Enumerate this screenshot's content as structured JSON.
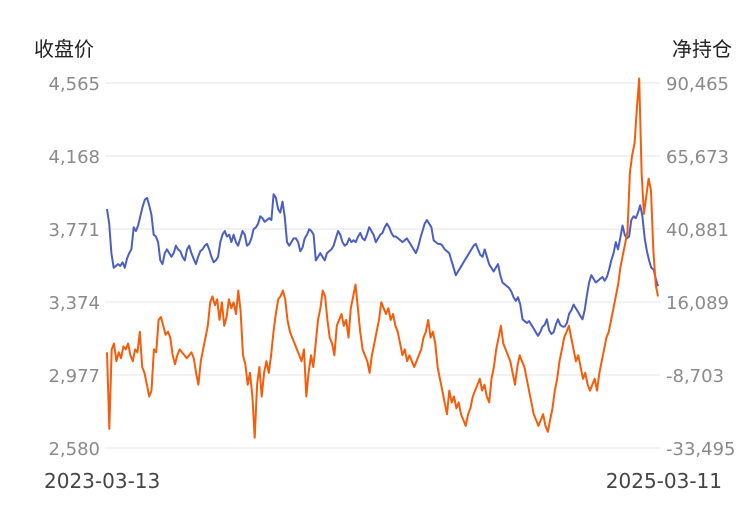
{
  "chart_data": {
    "type": "line",
    "title": "",
    "left_axis_title": "收盘价",
    "right_axis_title": "净持仓",
    "x_start_label": "2023-03-13",
    "x_end_label": "2025-03-11",
    "left_ticks": [
      "4,565",
      "4,168",
      "3,771",
      "3,374",
      "2,977",
      "2,580"
    ],
    "right_ticks": [
      "90,465",
      "65,673",
      "40,881",
      "16,089",
      "-8,703",
      "-33,495"
    ],
    "ylim_left": [
      2580,
      4565
    ],
    "ylim_right": [
      -33495,
      90465
    ],
    "grid": true,
    "colors": {
      "close": "#4a5fc1",
      "net_position": "#f55d0c"
    },
    "series": [
      {
        "axis": "left",
        "color": "#4a5fc1",
        "values": [
          3880,
          3800,
          3640,
          3560,
          3570,
          3580,
          3570,
          3590,
          3560,
          3610,
          3640,
          3660,
          3780,
          3760,
          3790,
          3840,
          3890,
          3930,
          3940,
          3900,
          3850,
          3740,
          3730,
          3700,
          3600,
          3580,
          3640,
          3660,
          3640,
          3620,
          3640,
          3680,
          3660,
          3650,
          3620,
          3600,
          3660,
          3680,
          3640,
          3610,
          3580,
          3620,
          3650,
          3660,
          3680,
          3690,
          3660,
          3620,
          3590,
          3600,
          3620,
          3700,
          3740,
          3760,
          3730,
          3740,
          3700,
          3740,
          3700,
          3680,
          3720,
          3760,
          3740,
          3680,
          3690,
          3720,
          3770,
          3780,
          3800,
          3840,
          3830,
          3810,
          3820,
          3830,
          3820,
          3960,
          3940,
          3880,
          3860,
          3920,
          3840,
          3700,
          3680,
          3700,
          3720,
          3720,
          3700,
          3650,
          3670,
          3720,
          3740,
          3770,
          3760,
          3740,
          3600,
          3620,
          3640,
          3620,
          3600,
          3640,
          3650,
          3660,
          3680,
          3720,
          3760,
          3740,
          3700,
          3680,
          3690,
          3720,
          3700,
          3710,
          3700,
          3730,
          3750,
          3720,
          3710,
          3740,
          3780,
          3760,
          3740,
          3700,
          3720,
          3740,
          3750,
          3780,
          3800,
          3780,
          3750,
          3730,
          3730,
          3720,
          3710,
          3700,
          3710,
          3720,
          3700,
          3680,
          3660,
          3640,
          3670,
          3720,
          3760,
          3800,
          3820,
          3800,
          3780,
          3710,
          3700,
          3690,
          3690,
          3680,
          3660,
          3650,
          3640,
          3600,
          3560,
          3520,
          3540,
          3560,
          3580,
          3600,
          3620,
          3640,
          3660,
          3680,
          3690,
          3660,
          3630,
          3620,
          3660,
          3620,
          3580,
          3560,
          3540,
          3560,
          3580,
          3520,
          3480,
          3470,
          3460,
          3450,
          3430,
          3400,
          3380,
          3400,
          3360,
          3280,
          3270,
          3260,
          3270,
          3250,
          3230,
          3210,
          3190,
          3210,
          3240,
          3250,
          3280,
          3220,
          3200,
          3210,
          3250,
          3280,
          3250,
          3240,
          3240,
          3260,
          3310,
          3330,
          3360,
          3340,
          3320,
          3300,
          3280,
          3330,
          3410,
          3480,
          3520,
          3500,
          3480,
          3490,
          3500,
          3510,
          3490,
          3510,
          3550,
          3600,
          3640,
          3700,
          3660,
          3720,
          3790,
          3740,
          3720,
          3730,
          3820,
          3840,
          3830,
          3860,
          3900,
          3840,
          3720,
          3650,
          3600,
          3560,
          3550,
          3500,
          3460
        ]
      },
      {
        "axis": "right",
        "color": "#f55d0c",
        "values": [
          -1000,
          -27000,
          0,
          2000,
          -4000,
          -1000,
          -3000,
          1000,
          0,
          2000,
          -2000,
          -4000,
          0,
          -1000,
          6000,
          -6000,
          -8000,
          -12000,
          -16000,
          -14000,
          0,
          -1000,
          10000,
          11000,
          8000,
          5000,
          6000,
          4000,
          -2000,
          -5000,
          -2000,
          0,
          -1000,
          -2000,
          -3000,
          -2000,
          -1000,
          -3000,
          -8000,
          -12000,
          -4000,
          0,
          4000,
          8000,
          16000,
          18000,
          15000,
          17000,
          10000,
          16000,
          8000,
          11000,
          17000,
          14000,
          16000,
          12000,
          20000,
          13000,
          -2000,
          -5000,
          -12000,
          -8000,
          -16000,
          -30000,
          -12000,
          -6000,
          -16000,
          -8000,
          -4000,
          -8000,
          -2000,
          6000,
          12000,
          17000,
          18000,
          20000,
          17000,
          10000,
          6000,
          4000,
          2000,
          0,
          -2000,
          -4000,
          0,
          -16000,
          -8000,
          -2000,
          -6000,
          2000,
          10000,
          14000,
          20000,
          18000,
          10000,
          4000,
          2000,
          -2000,
          8000,
          10000,
          12000,
          8000,
          10000,
          4000,
          14000,
          18000,
          22000,
          14000,
          6000,
          0,
          -2000,
          -4000,
          -8000,
          -2000,
          2000,
          6000,
          10000,
          16000,
          14000,
          12000,
          14000,
          10000,
          12000,
          8000,
          6000,
          2000,
          -2000,
          0,
          -4000,
          -2000,
          -4000,
          -6000,
          -4000,
          -2000,
          0,
          4000,
          6000,
          10000,
          4000,
          6000,
          2000,
          -6000,
          -10000,
          -14000,
          -18000,
          -22000,
          -14000,
          -18000,
          -16000,
          -20000,
          -18000,
          -22000,
          -24000,
          -26000,
          -22000,
          -20000,
          -16000,
          -14000,
          -12000,
          -10000,
          -14000,
          -12000,
          -16000,
          -18000,
          -10000,
          -6000,
          0,
          4000,
          8000,
          2000,
          0,
          -2000,
          -4000,
          -8000,
          -12000,
          -6000,
          -2000,
          -4000,
          -6000,
          -10000,
          -14000,
          -18000,
          -22000,
          -24000,
          -26000,
          -24000,
          -22000,
          -26000,
          -28000,
          -24000,
          -20000,
          -14000,
          -10000,
          -4000,
          0,
          4000,
          6000,
          8000,
          4000,
          0,
          -4000,
          -2000,
          -6000,
          -10000,
          -8000,
          -12000,
          -14000,
          -12000,
          -10000,
          -14000,
          -8000,
          -4000,
          0,
          4000,
          6000,
          10000,
          14000,
          18000,
          22000,
          28000,
          32000,
          36000,
          40000,
          60000,
          66000,
          70000,
          82000,
          92000,
          60000,
          46000,
          52000,
          58000,
          54000,
          34000,
          22000,
          18000
        ]
      }
    ]
  }
}
